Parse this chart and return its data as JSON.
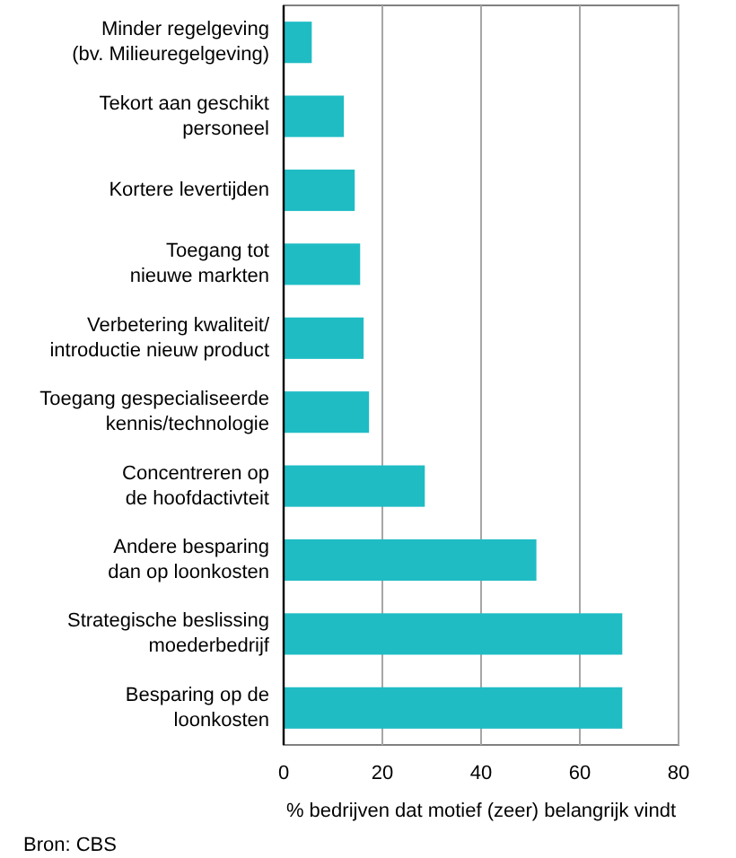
{
  "chart_data": {
    "type": "bar",
    "orientation": "horizontal",
    "categories": [
      "Minder regelgeving\n(bv. Milieuregelgeving)",
      "Tekort aan geschikt\npersoneel",
      "Kortere levertijden",
      "Toegang tot\nnieuwe markten",
      "Verbetering kwaliteit/\nintroductie nieuw product",
      "Toegang gespecialiseerde\nkennis/technologie",
      "Concentreren op\nde hoofdactivteit",
      "Andere besparing\ndan op loonkosten",
      "Strategische beslissing\nmoederbedrijf",
      "Besparing op de\nloonkosten"
    ],
    "values": [
      5.7,
      12.2,
      14.4,
      15.5,
      16.2,
      17.3,
      28.6,
      51.2,
      68.6,
      68.6
    ],
    "color": "#1fbcc4",
    "xlim": [
      0,
      80
    ],
    "xticks": [
      0,
      20,
      40,
      60,
      80
    ],
    "xlabel": "% bedrijven dat motief (zeer) belangrijk vindt",
    "annotations": [
      "Bron: CBS"
    ],
    "grid": "x"
  }
}
